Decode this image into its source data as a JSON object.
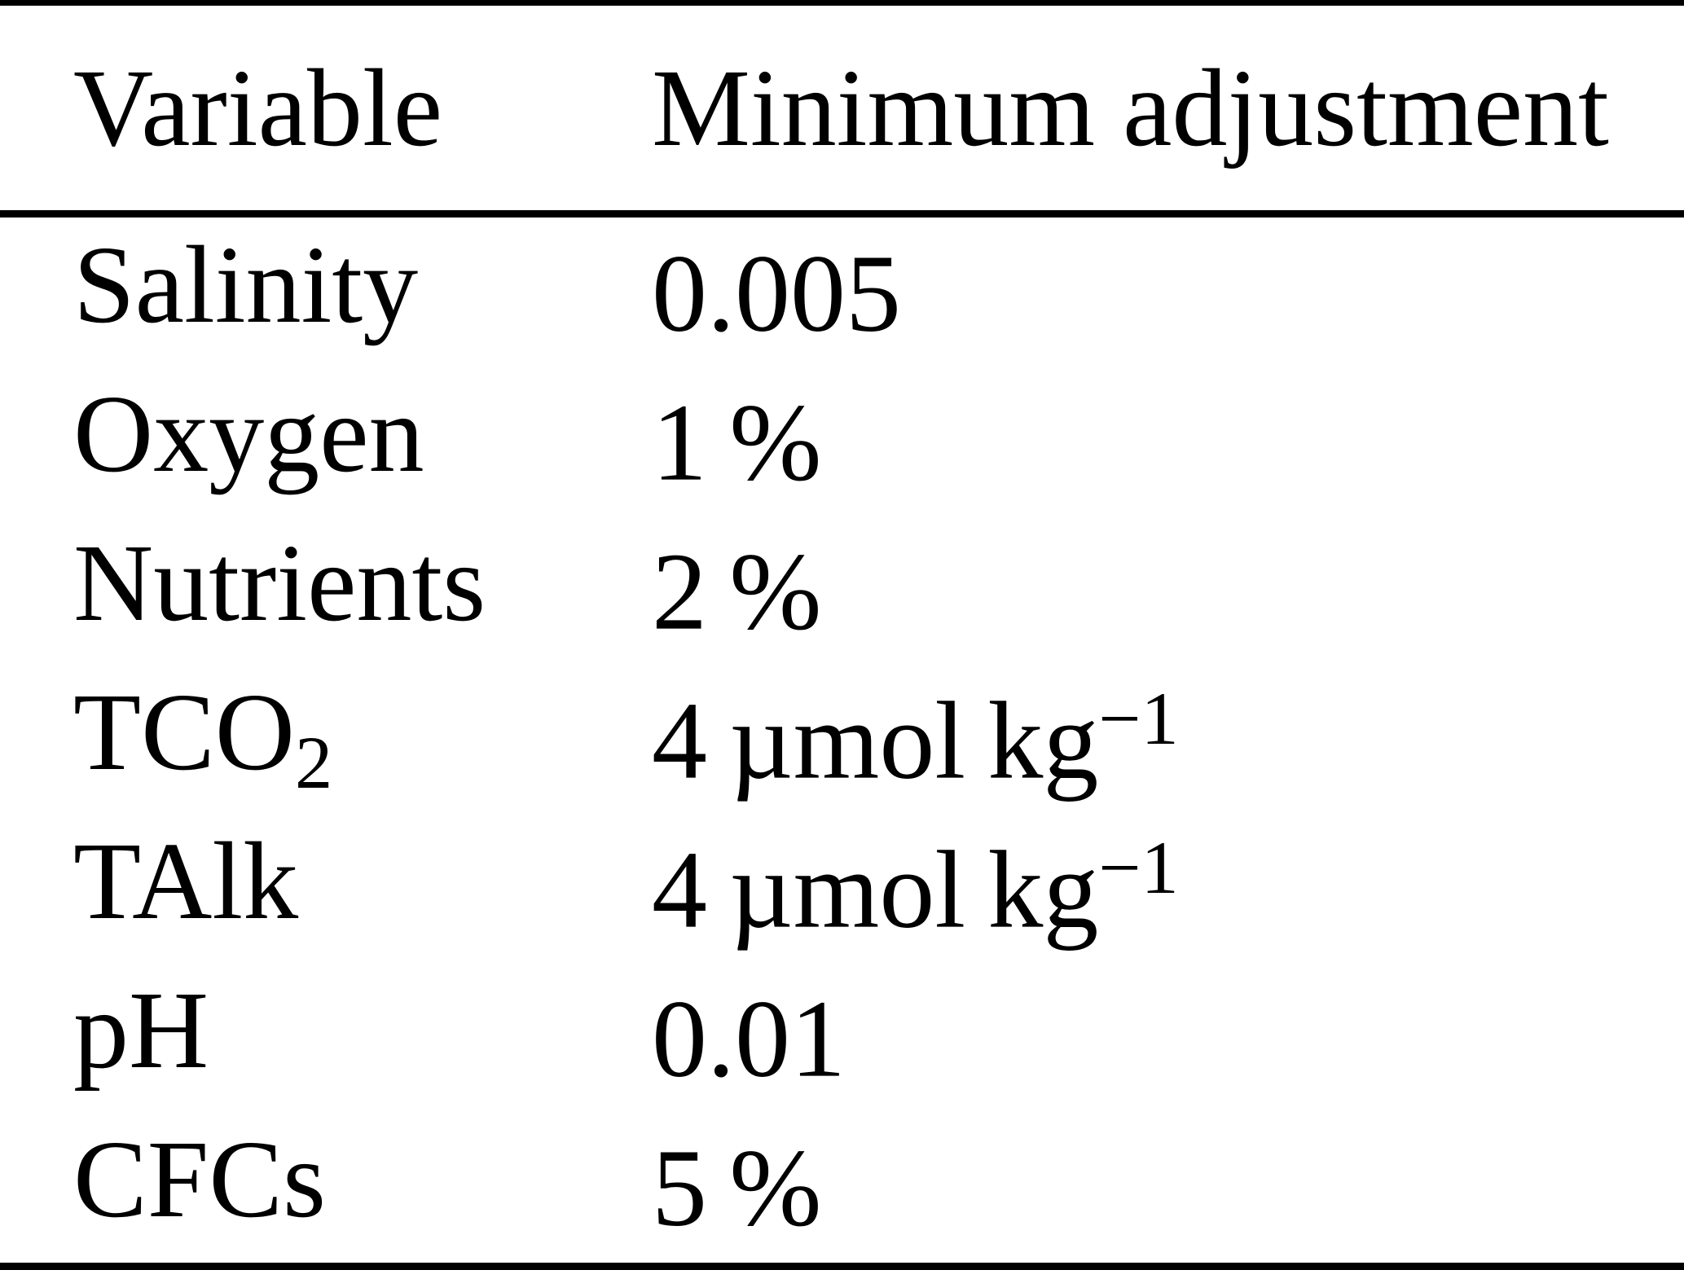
{
  "colors": {
    "text": "#000000",
    "background": "#ffffff",
    "rule": "#000000"
  },
  "table": {
    "header": {
      "variable": "Variable",
      "adjustment": "Minimum adjustment"
    },
    "rows": [
      {
        "variable": "Salinity",
        "variable_sub": "",
        "value": "0.005",
        "value_sup": ""
      },
      {
        "variable": "Oxygen",
        "variable_sub": "",
        "value": "1 %",
        "value_sup": ""
      },
      {
        "variable": "Nutrients",
        "variable_sub": "",
        "value": "2 %",
        "value_sup": ""
      },
      {
        "variable": "TCO",
        "variable_sub": "2",
        "value": "4 µmol kg",
        "value_sup": "−1"
      },
      {
        "variable": "TAlk",
        "variable_sub": "",
        "value": "4 µmol kg",
        "value_sup": "−1"
      },
      {
        "variable": "pH",
        "variable_sub": "",
        "value": "0.01",
        "value_sup": ""
      },
      {
        "variable": "CFCs",
        "variable_sub": "",
        "value": "5 %",
        "value_sup": ""
      }
    ]
  }
}
